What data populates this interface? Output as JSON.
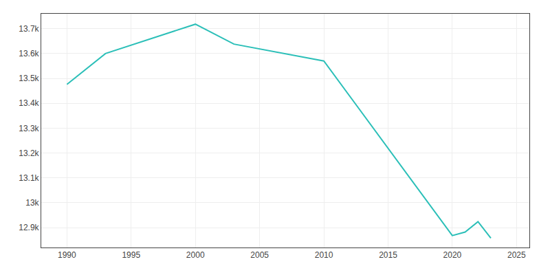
{
  "chart_data": {
    "type": "line",
    "x": [
      1990,
      1993,
      2000,
      2003,
      2010,
      2020,
      2021,
      2022,
      2023
    ],
    "values": [
      13476,
      13600,
      13718,
      13638,
      13570,
      12868,
      12882,
      12924,
      12858
    ],
    "color": "#2bbfb8",
    "xlim": [
      1988,
      2026
    ],
    "ylim": [
      12820,
      13760
    ],
    "xticks": [
      1990,
      1995,
      2000,
      2005,
      2010,
      2015,
      2020,
      2025
    ],
    "yticks": [
      {
        "value": 12900,
        "label": "12.9k"
      },
      {
        "value": 13000,
        "label": "13k"
      },
      {
        "value": 13100,
        "label": "13.1k"
      },
      {
        "value": 13200,
        "label": "13.2k"
      },
      {
        "value": 13300,
        "label": "13.3k"
      },
      {
        "value": 13400,
        "label": "13.4k"
      },
      {
        "value": 13500,
        "label": "13.5k"
      },
      {
        "value": 13600,
        "label": "13.6k"
      },
      {
        "value": 13700,
        "label": "13.7k"
      }
    ],
    "grid": true
  }
}
